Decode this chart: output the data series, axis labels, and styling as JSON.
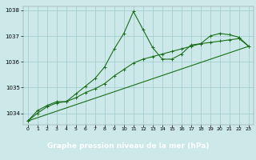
{
  "title": "Graphe pression niveau de la mer (hPa)",
  "xlim": [
    -0.5,
    23.5
  ],
  "ylim": [
    1033.55,
    1038.15
  ],
  "yticks": [
    1034,
    1035,
    1036,
    1037,
    1038
  ],
  "xticks": [
    0,
    1,
    2,
    3,
    4,
    5,
    6,
    7,
    8,
    9,
    10,
    11,
    12,
    13,
    14,
    15,
    16,
    17,
    18,
    19,
    20,
    21,
    22,
    23
  ],
  "bg_color": "#cce8e8",
  "grid_color": "#99cccc",
  "line_color": "#1a6e1a",
  "title_bg": "#2d6e2d",
  "title_fg": "#ffffff",
  "line1_x": [
    0,
    1,
    2,
    3,
    4,
    5,
    6,
    7,
    8,
    9,
    10,
    11,
    12,
    13,
    14,
    15,
    16,
    17,
    18,
    19,
    20,
    21,
    22,
    23
  ],
  "line1_y": [
    1033.7,
    1034.1,
    1034.3,
    1034.45,
    1034.45,
    1034.75,
    1035.05,
    1035.35,
    1035.8,
    1036.5,
    1037.1,
    1037.95,
    1037.25,
    1036.55,
    1036.1,
    1036.1,
    1036.3,
    1036.65,
    1036.7,
    1037.0,
    1037.1,
    1037.05,
    1036.95,
    1036.6
  ],
  "line2_x": [
    0,
    1,
    2,
    3,
    4,
    5,
    6,
    7,
    8,
    9,
    10,
    11,
    12,
    13,
    14,
    15,
    16,
    17,
    18,
    19,
    20,
    21,
    22,
    23
  ],
  "line2_y": [
    1033.7,
    1034.0,
    1034.25,
    1034.4,
    1034.45,
    1034.6,
    1034.8,
    1034.95,
    1035.15,
    1035.45,
    1035.7,
    1035.95,
    1036.1,
    1036.2,
    1036.3,
    1036.4,
    1036.5,
    1036.6,
    1036.7,
    1036.75,
    1036.8,
    1036.85,
    1036.9,
    1036.6
  ],
  "line3_x": [
    0,
    23
  ],
  "line3_y": [
    1033.7,
    1036.6
  ]
}
